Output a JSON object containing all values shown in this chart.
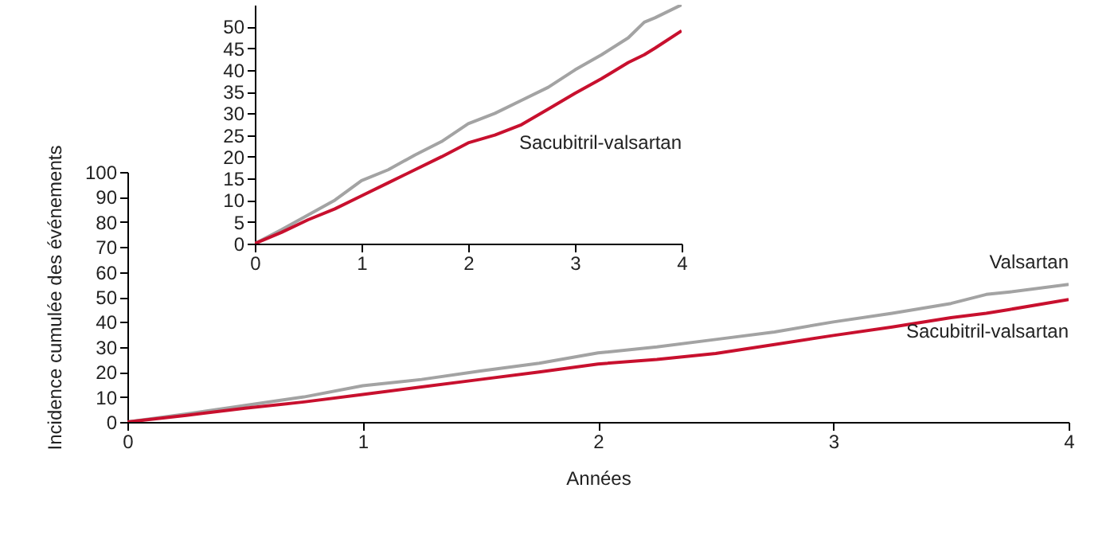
{
  "chart_data": [
    {
      "type": "line",
      "xlabel": "Années",
      "ylabel": "Incidence cumulée des événements",
      "x": [
        0,
        0.25,
        0.5,
        0.75,
        1,
        1.25,
        1.5,
        1.75,
        2,
        2.25,
        2.5,
        2.75,
        3,
        3.25,
        3.5,
        3.65,
        3.75,
        4
      ],
      "xlim": [
        0,
        4
      ],
      "xticks": [
        0,
        1,
        2,
        3,
        4
      ],
      "ylim": [
        0,
        100
      ],
      "yticks": [
        0,
        10,
        20,
        30,
        40,
        50,
        60,
        70,
        80,
        90,
        100
      ],
      "series": [
        {
          "name": "Valsartan",
          "color": "#a3a3a3",
          "values": [
            0,
            3.2,
            6.6,
            10,
            14.5,
            17,
            20.4,
            23.5,
            27.6,
            30,
            33,
            36,
            40,
            43.5,
            47.4,
            51,
            52,
            55
          ]
        },
        {
          "name": "Sacubitril-valsartan",
          "color": "#c8102e",
          "values": [
            0,
            2.6,
            5.5,
            8,
            11,
            14,
            17,
            20,
            23.2,
            25,
            27.4,
            31,
            34.6,
            38,
            41.7,
            43.5,
            45,
            49
          ]
        }
      ]
    },
    {
      "type": "line",
      "x": [
        0,
        0.25,
        0.5,
        0.75,
        1,
        1.25,
        1.5,
        1.75,
        2,
        2.25,
        2.5,
        2.75,
        3,
        3.25,
        3.5,
        3.65,
        3.75,
        4
      ],
      "xlim": [
        0,
        4
      ],
      "xticks": [
        0,
        1,
        2,
        3,
        4
      ],
      "ylim": [
        0,
        55
      ],
      "yticks": [
        0,
        5,
        10,
        15,
        20,
        25,
        30,
        35,
        40,
        45,
        50
      ],
      "series": [
        {
          "color": "#a3a3a3",
          "values": [
            0,
            3.2,
            6.6,
            10,
            14.5,
            17,
            20.4,
            23.5,
            27.6,
            30,
            33,
            36,
            40,
            43.5,
            47.4,
            51,
            52,
            55
          ]
        },
        {
          "name": "Sacubitril-valsartan",
          "color": "#c8102e",
          "values": [
            0,
            2.6,
            5.5,
            8,
            11,
            14,
            17,
            20,
            23.2,
            25,
            27.4,
            31,
            34.6,
            38,
            41.7,
            43.5,
            45,
            49
          ]
        }
      ]
    }
  ]
}
